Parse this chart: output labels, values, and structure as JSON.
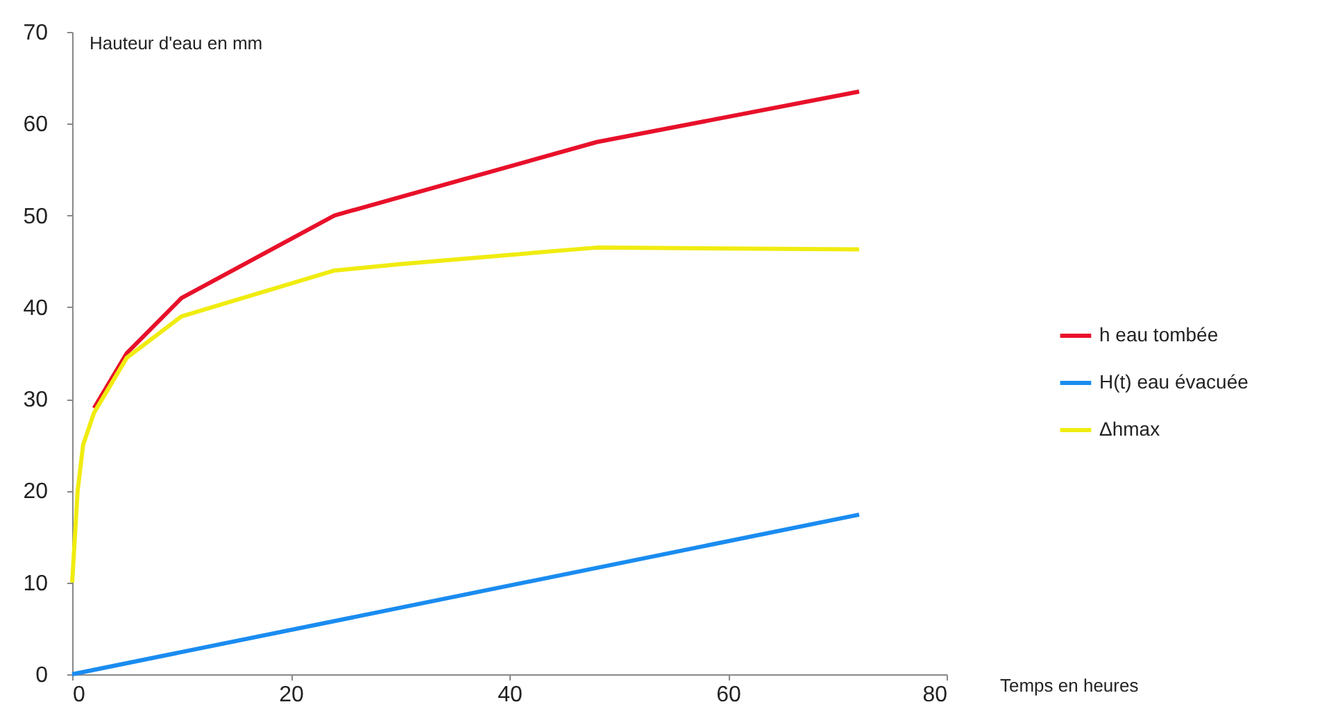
{
  "chart_data": {
    "type": "line",
    "xlabel": "Temps en heures",
    "ylabel": "Hauteur d'eau en mm",
    "xlim": [
      0,
      80
    ],
    "xticks": [
      0,
      20,
      40,
      60,
      80
    ],
    "ylim": [
      0,
      70
    ],
    "yticks": [
      0,
      10,
      20,
      30,
      40,
      50,
      60,
      70
    ],
    "grid": false,
    "legend": "right",
    "marker": "none",
    "line_style": "solid",
    "series": [
      {
        "name": "h eau tombée",
        "color": "#e8102a",
        "x": [
          2,
          5,
          10,
          24,
          48,
          72
        ],
        "values": [
          29,
          35,
          41,
          50,
          58,
          63.5
        ]
      },
      {
        "name": "H(t) eau évacuée",
        "color": "#1a8cf0",
        "x": [
          0,
          72
        ],
        "values": [
          0,
          17.4
        ]
      },
      {
        "name": "Δhmax",
        "color": "#f0ec10",
        "x": [
          0,
          0.5,
          1,
          2,
          5,
          10,
          24,
          30,
          48,
          72
        ],
        "values": [
          10,
          20,
          25,
          28.5,
          34.5,
          39,
          44,
          44.7,
          46.5,
          46.3
        ]
      }
    ]
  }
}
